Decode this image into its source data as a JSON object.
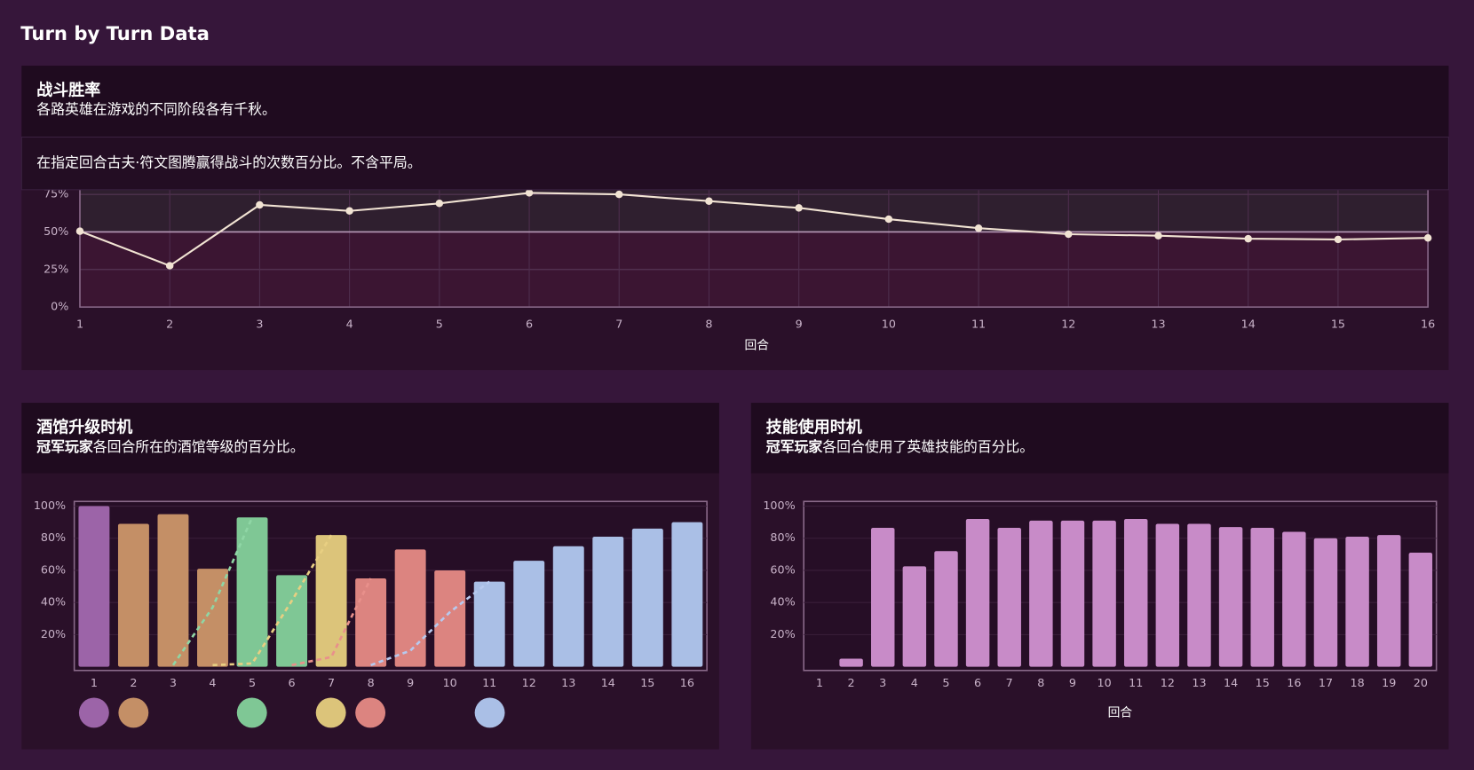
{
  "page_title": "Turn by Turn Data",
  "chart_data": [
    {
      "type": "line",
      "title": "战斗胜率",
      "subtitle": "各路英雄在游戏的不同阶段各有千秋。",
      "description": "在指定回合古夫·符文图腾赢得战斗的次数百分比。不含平局。",
      "x": [
        1,
        2,
        3,
        4,
        5,
        6,
        7,
        8,
        9,
        10,
        11,
        12,
        13,
        14,
        15,
        16
      ],
      "values": [
        50.5,
        27.5,
        68,
        64,
        69,
        76,
        75,
        70.5,
        66,
        58.5,
        52.5,
        48.5,
        47.5,
        45.5,
        45,
        46
      ],
      "xlim": [
        1,
        16
      ],
      "xticks": [
        1,
        2,
        3,
        4,
        5,
        6,
        7,
        8,
        9,
        10,
        11,
        12,
        13,
        14,
        15,
        16
      ],
      "ylim": [
        0,
        100
      ],
      "yticks": [
        {
          "value": 0,
          "label": "0%"
        },
        {
          "value": 25,
          "label": "25%"
        },
        {
          "value": 50,
          "label": "50%"
        },
        {
          "value": 75,
          "label": "75%"
        }
      ],
      "reference": 50,
      "color": "#f1e3d3",
      "grid": true,
      "xlabel": "回合"
    },
    {
      "type": "bar",
      "title": "酒馆升级时机",
      "subtitle_bold": "冠军玩家",
      "subtitle": "各回合所在的酒馆等级的百分比。",
      "categories": [
        "1",
        "2",
        "3",
        "4",
        "5",
        "6",
        "7",
        "8",
        "9",
        "10",
        "11",
        "12",
        "13",
        "14",
        "15",
        "16"
      ],
      "values": [
        100,
        89,
        95,
        61,
        93,
        57,
        82,
        55,
        73,
        60,
        53,
        66,
        75,
        81,
        86,
        90
      ],
      "colors": [
        "#9c64a8",
        "#c48f66",
        "#c48f66",
        "#c48f66",
        "#7fc795",
        "#7fc795",
        "#dcc47a",
        "#dc8480",
        "#dc8480",
        "#dc8480",
        "#aabfe6",
        "#aabfe6",
        "#aabfe6",
        "#aabfe6",
        "#aabfe6",
        "#aabfe6"
      ],
      "lines": [
        {
          "color": "#8fd6a5",
          "values": [
            null,
            null,
            1,
            37,
            93,
            null,
            null,
            null,
            null,
            null,
            null,
            null,
            null,
            null,
            null,
            null
          ]
        },
        {
          "color": "#e8cf82",
          "values": [
            null,
            null,
            null,
            1,
            2,
            41,
            82,
            null,
            null,
            null,
            null,
            null,
            null,
            null,
            null,
            null
          ]
        },
        {
          "color": "#e8908b",
          "values": [
            null,
            null,
            null,
            null,
            null,
            1,
            6,
            55,
            null,
            null,
            null,
            null,
            null,
            null,
            null,
            null
          ]
        },
        {
          "color": "#b7c9ee",
          "values": [
            null,
            null,
            null,
            null,
            null,
            null,
            null,
            1,
            10,
            34,
            53,
            null,
            null,
            null,
            null,
            null
          ]
        }
      ],
      "ylim": [
        0,
        100
      ],
      "yticks": [
        {
          "value": 20,
          "label": "20%"
        },
        {
          "value": 40,
          "label": "40%"
        },
        {
          "value": 60,
          "label": "60%"
        },
        {
          "value": 80,
          "label": "80%"
        },
        {
          "value": 100,
          "label": "100%"
        }
      ],
      "grid": true
    },
    {
      "type": "bar",
      "title": "技能使用时机",
      "subtitle_bold": "冠军玩家",
      "subtitle": "各回合使用了英雄技能的百分比。",
      "categories": [
        "1",
        "2",
        "3",
        "4",
        "5",
        "6",
        "7",
        "8",
        "9",
        "10",
        "11",
        "12",
        "13",
        "14",
        "15",
        "16",
        "17",
        "18",
        "19",
        "20"
      ],
      "values": [
        0,
        5,
        86.5,
        62.5,
        72,
        92,
        86.5,
        91,
        91,
        91,
        92,
        89,
        89,
        87,
        86.5,
        84,
        80,
        81,
        82,
        71
      ],
      "color": "#c88bc8",
      "ylim": [
        0,
        100
      ],
      "yticks": [
        {
          "value": 20,
          "label": "20%"
        },
        {
          "value": 40,
          "label": "40%"
        },
        {
          "value": 60,
          "label": "60%"
        },
        {
          "value": 80,
          "label": "80%"
        },
        {
          "value": 100,
          "label": "100%"
        }
      ],
      "grid": true,
      "xlabel": "回合"
    }
  ]
}
